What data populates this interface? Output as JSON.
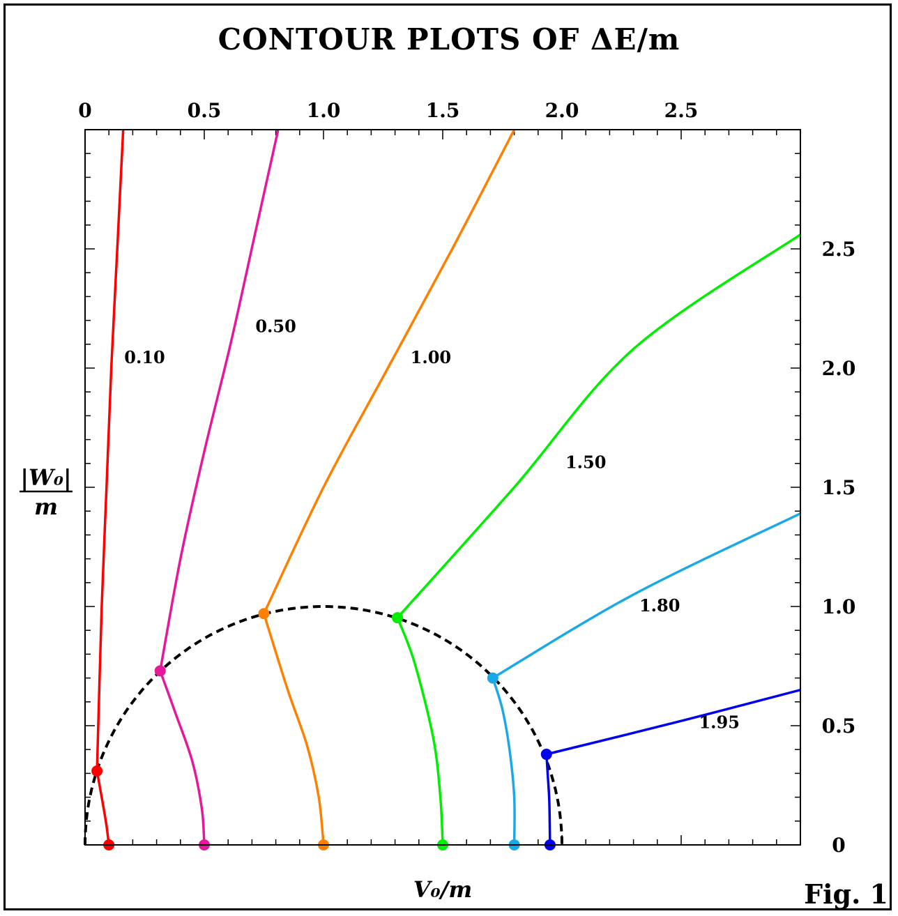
{
  "figure_label": "Fig. 1",
  "chart_data": {
    "type": "line",
    "title": "CONTOUR PLOTS OF ΔE/m",
    "xlabel": "V₀/m",
    "ylabel_num": "|W₀|",
    "ylabel_den": "m",
    "xlim": [
      0,
      3.0
    ],
    "ylim": [
      0,
      3.0
    ],
    "x_tick_labels": [
      "0",
      "0.5",
      "1.0",
      "1.5",
      "2.0",
      "2.5"
    ],
    "x_ticks": [
      0,
      0.5,
      1.0,
      1.5,
      2.0,
      2.5
    ],
    "y_tick_labels": [
      "0",
      "0.5",
      "1.0",
      "1.5",
      "2.0",
      "2.5"
    ],
    "y_ticks": [
      0,
      0.5,
      1.0,
      1.5,
      2.0,
      2.5
    ],
    "boundary_curve": {
      "style": "dashed",
      "color": "#000000",
      "center": [
        1.0,
        0.0
      ],
      "radius": 1.0
    },
    "series": [
      {
        "label": "0.10",
        "color": "#ff0000",
        "label_pos": [
          0.25,
          2.02
        ],
        "inner": [
          [
            0.1,
            0.0
          ],
          [
            0.09,
            0.08
          ],
          [
            0.075,
            0.17
          ],
          [
            0.05,
            0.31
          ]
        ],
        "outer": [
          [
            0.05,
            0.31
          ],
          [
            0.07,
            1.0
          ],
          [
            0.09,
            1.5
          ],
          [
            0.11,
            2.0
          ],
          [
            0.135,
            2.5
          ],
          [
            0.16,
            3.0
          ]
        ]
      },
      {
        "label": "0.50",
        "color": "#e6179a",
        "label_pos": [
          0.8,
          2.15
        ],
        "inner": [
          [
            0.5,
            0.0
          ],
          [
            0.49,
            0.15
          ],
          [
            0.45,
            0.35
          ],
          [
            0.38,
            0.55
          ],
          [
            0.315,
            0.73
          ]
        ],
        "outer": [
          [
            0.315,
            0.73
          ],
          [
            0.4,
            1.2
          ],
          [
            0.5,
            1.65
          ],
          [
            0.61,
            2.1
          ],
          [
            0.71,
            2.55
          ],
          [
            0.81,
            3.0
          ]
        ]
      },
      {
        "label": "1.00",
        "color": "#ff8000",
        "label_pos": [
          1.45,
          2.02
        ],
        "inner": [
          [
            1.0,
            0.0
          ],
          [
            0.98,
            0.2
          ],
          [
            0.93,
            0.42
          ],
          [
            0.85,
            0.65
          ],
          [
            0.75,
            0.97
          ]
        ],
        "outer": [
          [
            0.75,
            0.97
          ],
          [
            1.0,
            1.5
          ],
          [
            1.27,
            2.0
          ],
          [
            1.54,
            2.5
          ],
          [
            1.8,
            3.0
          ]
        ]
      },
      {
        "label": "1.50",
        "color": "#00ee00",
        "label_pos": [
          2.1,
          1.58
        ],
        "inner": [
          [
            1.5,
            0.0
          ],
          [
            1.49,
            0.2
          ],
          [
            1.46,
            0.45
          ],
          [
            1.38,
            0.77
          ],
          [
            1.31,
            0.953
          ]
        ],
        "outer": [
          [
            1.31,
            0.953
          ],
          [
            1.8,
            1.5
          ],
          [
            2.3,
            2.08
          ],
          [
            3.0,
            2.56
          ]
        ]
      },
      {
        "label": "1.80",
        "color": "#1aa8e6",
        "label_pos": [
          2.41,
          0.98
        ],
        "inner": [
          [
            1.8,
            0.0
          ],
          [
            1.8,
            0.2
          ],
          [
            1.78,
            0.4
          ],
          [
            1.75,
            0.57
          ],
          [
            1.71,
            0.7
          ]
        ],
        "outer": [
          [
            1.71,
            0.7
          ],
          [
            2.3,
            1.05
          ],
          [
            3.0,
            1.39
          ]
        ]
      },
      {
        "label": "1.95",
        "color": "#0000ee",
        "label_pos": [
          2.66,
          0.49
        ],
        "inner": [
          [
            1.95,
            0.0
          ],
          [
            1.947,
            0.18
          ],
          [
            1.94,
            0.3
          ],
          [
            1.935,
            0.38
          ]
        ],
        "outer": [
          [
            1.935,
            0.38
          ],
          [
            2.5,
            0.52
          ],
          [
            3.0,
            0.65
          ]
        ]
      }
    ]
  }
}
